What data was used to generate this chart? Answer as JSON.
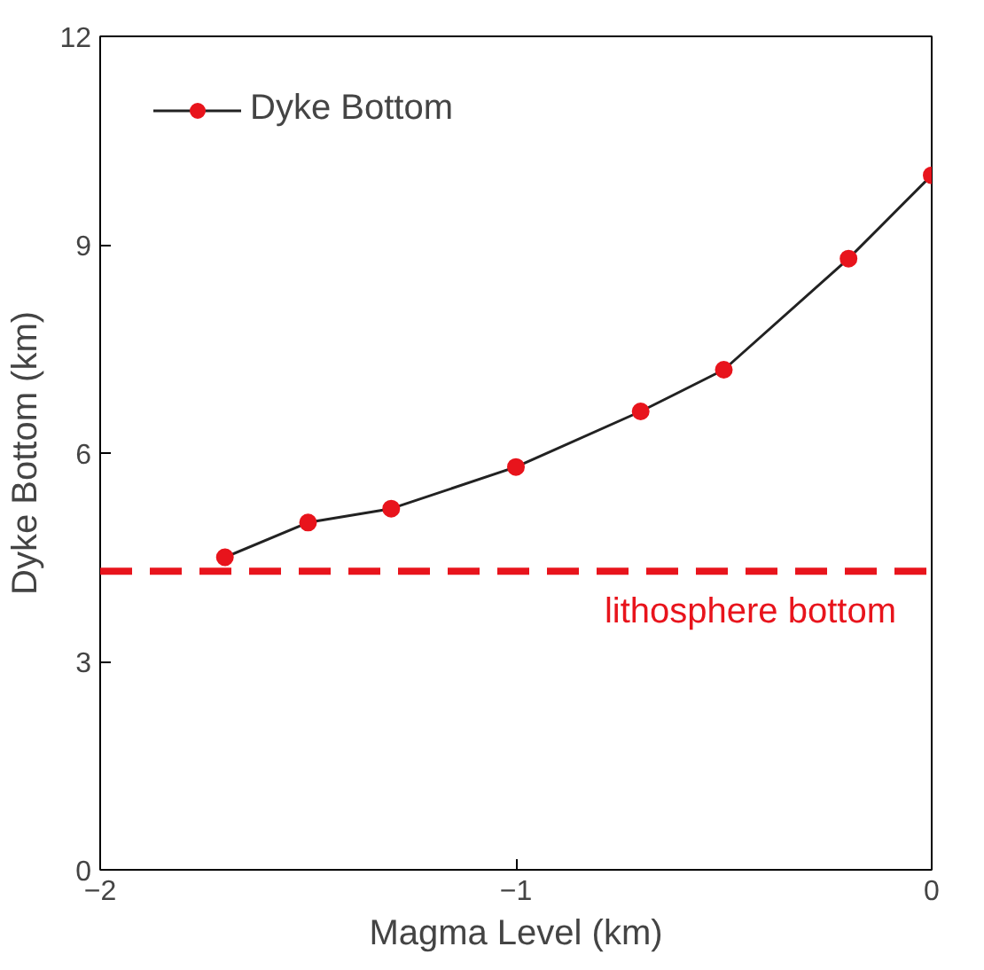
{
  "chart_data": {
    "type": "line",
    "xlabel": "Magma Level (km)",
    "ylabel": "Dyke Bottom (km)",
    "x": [
      -1.7,
      -1.5,
      -1.3,
      -1.0,
      -0.7,
      -0.5,
      -0.2,
      0.0
    ],
    "series": [
      {
        "name": "Dyke Bottom",
        "color": "#e8141c",
        "values": [
          4.5,
          5.0,
          5.2,
          5.8,
          6.6,
          7.2,
          8.8,
          10.0
        ]
      }
    ],
    "xlim": [
      -2,
      0
    ],
    "xticks": [
      {
        "value": -2,
        "label": "−2"
      },
      {
        "value": -1,
        "label": "−1"
      },
      0
    ],
    "ylim": [
      0,
      12
    ],
    "yticks": [
      0,
      3,
      6,
      9,
      12
    ],
    "ref_lines": [
      {
        "axis": "y",
        "value": 4.3,
        "label": "lithosphere bottom",
        "color": "#e8141c",
        "line_style": "dashed"
      }
    ],
    "marker": "circle",
    "line_style": "solid",
    "grid": false,
    "legend": "top left"
  }
}
